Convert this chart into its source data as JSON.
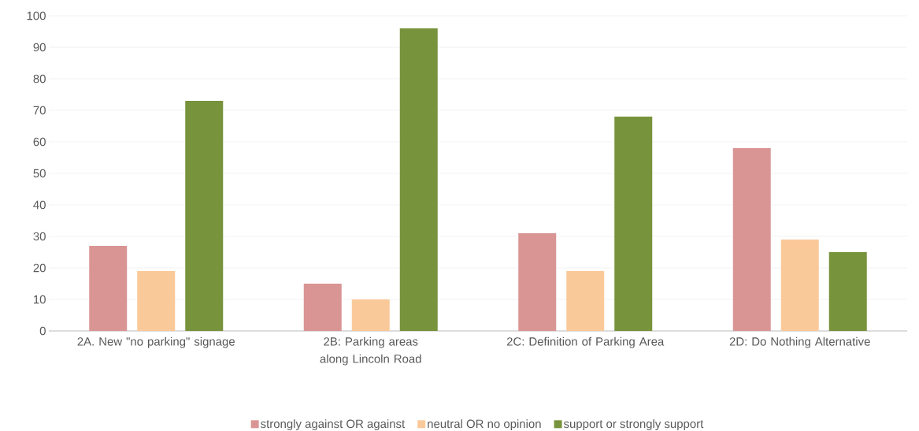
{
  "chart_data": {
    "type": "bar",
    "categories": [
      "2A. New \"no parking\" signage",
      "2B: Parking areas along Lincoln Road",
      "2C: Definition of Parking Area",
      "2D: Do Nothing Alternative"
    ],
    "series": [
      {
        "name": "strongly against OR against",
        "color": "#d99594",
        "values": [
          27,
          15,
          31,
          58
        ]
      },
      {
        "name": "neutral OR no opinion",
        "color": "#fac999",
        "values": [
          19,
          10,
          19,
          29
        ]
      },
      {
        "name": "support or strongly support",
        "color": "#77933c",
        "values": [
          73,
          96,
          68,
          25
        ]
      }
    ],
    "ylim": [
      0,
      100
    ],
    "yticks": [
      0,
      10,
      20,
      30,
      40,
      50,
      60,
      70,
      80,
      90,
      100
    ],
    "grid": "y",
    "legend": "bottom"
  }
}
